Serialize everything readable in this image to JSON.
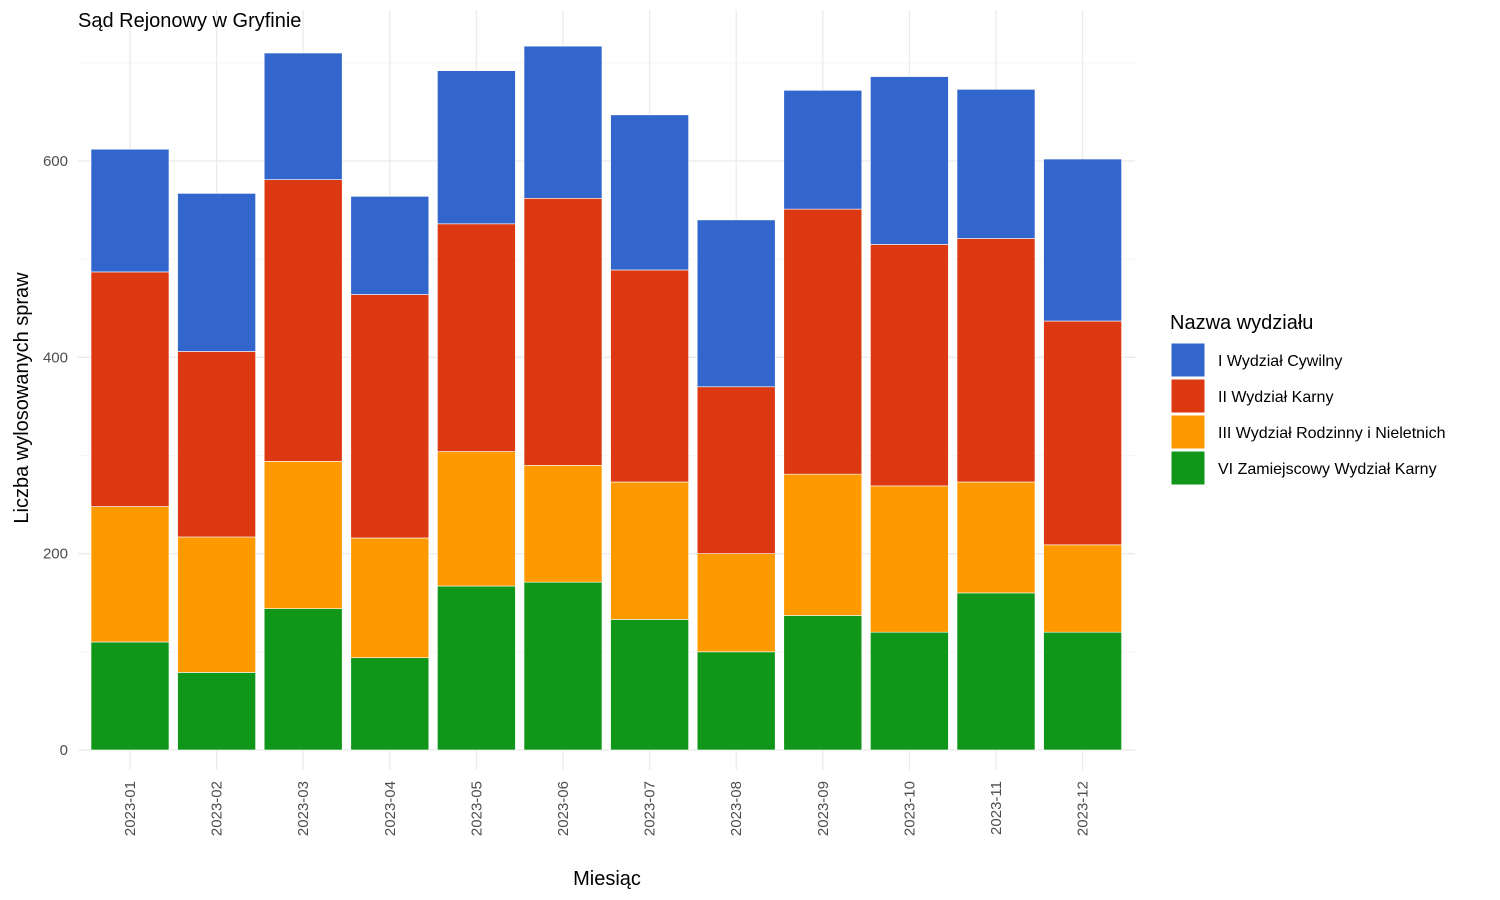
{
  "chart_data": {
    "type": "bar",
    "stacked": true,
    "title": "Sąd Rejonowy w Gryfinie",
    "xlabel": "Miesiąc",
    "ylabel": "Liczba wylosowanych spraw",
    "ylim": [
      0,
      750
    ],
    "yticks": [
      0,
      200,
      400,
      600
    ],
    "grid": true,
    "legend": {
      "title": "Nazwa wydziału",
      "position": "right"
    },
    "categories": [
      "2023-01",
      "2023-02",
      "2023-03",
      "2023-04",
      "2023-05",
      "2023-06",
      "2023-07",
      "2023-08",
      "2023-09",
      "2023-10",
      "2023-11",
      "2023-12"
    ],
    "series": [
      {
        "name": "VI Zamiejscowy Wydział Karny",
        "color": "#109618",
        "values": [
          110,
          79,
          144,
          94,
          167,
          171,
          133,
          100,
          137,
          120,
          160,
          120
        ]
      },
      {
        "name": "III Wydział Rodzinny i Nieletnich",
        "color": "#ff9900",
        "values": [
          138,
          138,
          150,
          122,
          137,
          119,
          140,
          100,
          144,
          149,
          113,
          89
        ]
      },
      {
        "name": "II Wydział Karny",
        "color": "#dc3912",
        "values": [
          239,
          189,
          287,
          248,
          232,
          272,
          216,
          170,
          270,
          246,
          248,
          228
        ]
      },
      {
        "name": "I Wydział Cywilny",
        "color": "#3366cc",
        "values": [
          125,
          161,
          129,
          100,
          156,
          155,
          158,
          170,
          121,
          171,
          152,
          165
        ]
      }
    ],
    "legend_order": [
      "I Wydział Cywilny",
      "II Wydział Karny",
      "III Wydział Rodzinny i Nieletnich",
      "VI Zamiejscowy Wydział Karny"
    ]
  }
}
